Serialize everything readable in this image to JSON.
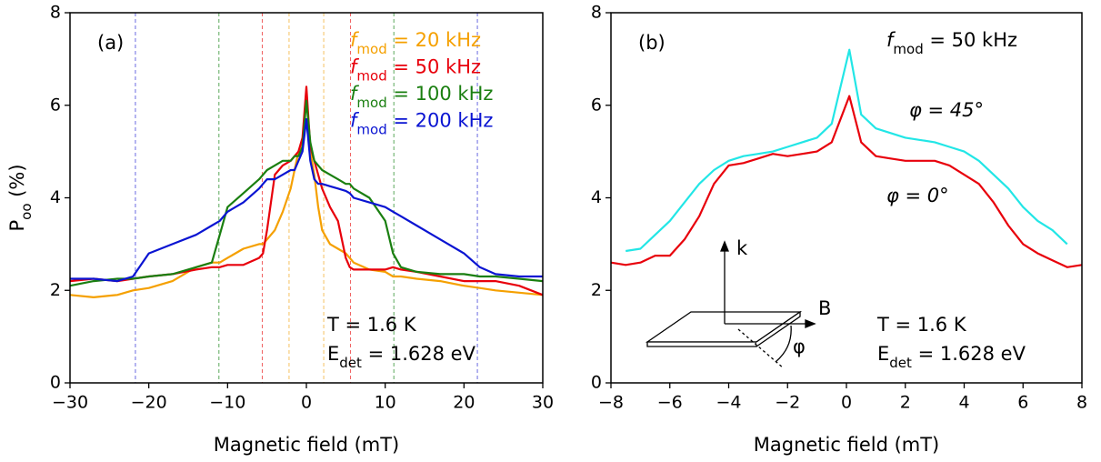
{
  "chart_data": [
    {
      "type": "line",
      "panel_label": "(a)",
      "x_label": "Magnetic field (mT)",
      "y_label": [
        "P",
        "oo",
        " (%)"
      ],
      "xlim": [
        -30,
        30
      ],
      "ylim": [
        0,
        8
      ],
      "xticks": [
        {
          "value": -30,
          "label": "−30"
        },
        {
          "value": -20,
          "label": "−20"
        },
        {
          "value": -10,
          "label": "−10"
        },
        0,
        10,
        20,
        30
      ],
      "yticks": [
        0,
        2,
        4,
        6,
        8
      ],
      "x": [
        -30,
        -27,
        -24,
        -22,
        -20,
        -17,
        -14,
        -12,
        -11,
        -10,
        -8,
        -6,
        -5.5,
        -5,
        -4,
        -3,
        -2,
        -1.5,
        -1,
        -0.5,
        0,
        0.5,
        1,
        1.5,
        2,
        3,
        4,
        5,
        5.5,
        6,
        8,
        10,
        11,
        12,
        14,
        17,
        20,
        22,
        24,
        27,
        30
      ],
      "series": [
        {
          "name": [
            "f",
            "mod",
            " = 20 kHz"
          ],
          "color": "#f5a000",
          "values": [
            1.9,
            1.85,
            1.9,
            2.0,
            2.05,
            2.2,
            2.5,
            2.6,
            2.6,
            2.7,
            2.9,
            3.0,
            3.0,
            3.1,
            3.3,
            3.7,
            4.2,
            4.6,
            5.0,
            5.2,
            6.3,
            5.0,
            4.5,
            3.8,
            3.3,
            3.0,
            2.9,
            2.8,
            2.7,
            2.6,
            2.45,
            2.4,
            2.3,
            2.3,
            2.25,
            2.2,
            2.1,
            2.05,
            2.0,
            1.95,
            1.9
          ]
        },
        {
          "name": [
            "f",
            "mod",
            " = 50 kHz"
          ],
          "color": "#e8000b",
          "values": [
            2.2,
            2.25,
            2.2,
            2.25,
            2.3,
            2.35,
            2.45,
            2.5,
            2.5,
            2.55,
            2.55,
            2.7,
            2.8,
            3.3,
            4.5,
            4.7,
            4.8,
            4.9,
            5.0,
            5.3,
            6.4,
            5.1,
            4.8,
            4.5,
            4.2,
            3.8,
            3.5,
            2.7,
            2.5,
            2.45,
            2.45,
            2.45,
            2.5,
            2.45,
            2.4,
            2.3,
            2.2,
            2.2,
            2.2,
            2.1,
            1.9
          ]
        },
        {
          "name": [
            "f",
            "mod",
            " = 100 kHz"
          ],
          "color": "#1a7f10",
          "values": [
            2.1,
            2.2,
            2.25,
            2.25,
            2.3,
            2.35,
            2.5,
            2.6,
            3.2,
            3.8,
            4.1,
            4.4,
            4.5,
            4.6,
            4.7,
            4.8,
            4.8,
            4.9,
            4.9,
            5.1,
            6.1,
            5.2,
            4.8,
            4.7,
            4.6,
            4.5,
            4.4,
            4.3,
            4.3,
            4.2,
            4.0,
            3.5,
            2.8,
            2.5,
            2.4,
            2.35,
            2.35,
            2.3,
            2.3,
            2.25,
            2.2
          ]
        },
        {
          "name": [
            "f",
            "mod",
            " = 200 kHz"
          ],
          "color": "#0a14d2",
          "values": [
            2.25,
            2.25,
            2.2,
            2.3,
            2.8,
            3.0,
            3.2,
            3.4,
            3.5,
            3.7,
            3.9,
            4.2,
            4.3,
            4.4,
            4.4,
            4.5,
            4.6,
            4.6,
            4.8,
            5.0,
            5.7,
            4.8,
            4.4,
            4.3,
            4.3,
            4.25,
            4.2,
            4.15,
            4.1,
            4.0,
            3.9,
            3.8,
            3.7,
            3.6,
            3.4,
            3.1,
            2.8,
            2.5,
            2.35,
            2.3,
            2.3
          ]
        }
      ],
      "vlines": [
        {
          "x": -21.7,
          "color": "#6a6ae0"
        },
        {
          "x": -11.1,
          "color": "#5aa85a"
        },
        {
          "x": -5.6,
          "color": "#f06060"
        },
        {
          "x": -2.2,
          "color": "#f5c060"
        },
        {
          "x": 2.2,
          "color": "#f5c060"
        },
        {
          "x": 5.6,
          "color": "#f06060"
        },
        {
          "x": 11.1,
          "color": "#5aa85a"
        },
        {
          "x": 21.7,
          "color": "#6a6ae0"
        }
      ],
      "annotations": [
        [
          "T = 1.6 K"
        ],
        [
          "E",
          "det",
          " = 1.628 eV"
        ]
      ]
    },
    {
      "type": "line",
      "panel_label": "(b)",
      "x_label": "Magnetic field (mT)",
      "xlim": [
        -8,
        8
      ],
      "ylim": [
        0,
        8
      ],
      "xticks": [
        {
          "value": -8,
          "label": "−8"
        },
        {
          "value": -6,
          "label": "−6"
        },
        {
          "value": -4,
          "label": "−4"
        },
        {
          "value": -2,
          "label": "−2"
        },
        0,
        2,
        4,
        6,
        8
      ],
      "yticks": [
        0,
        2,
        4,
        6,
        8
      ],
      "x": [
        -8,
        -7.5,
        -7,
        -6.5,
        -6,
        -5.5,
        -5,
        -4.5,
        -4,
        -3.5,
        -3,
        -2.5,
        -2,
        -1.5,
        -1,
        -0.5,
        0.1,
        0.5,
        1,
        1.5,
        2,
        2.5,
        3,
        3.5,
        4,
        4.5,
        5,
        5.5,
        6,
        6.5,
        7,
        7.5,
        8
      ],
      "series": [
        {
          "name": "φ = 45°",
          "color": "#22e6e6",
          "values": [
            null,
            2.85,
            2.9,
            3.2,
            3.5,
            3.9,
            4.3,
            4.6,
            4.8,
            4.9,
            4.95,
            5.0,
            5.1,
            5.2,
            5.3,
            5.6,
            7.2,
            5.8,
            5.5,
            5.4,
            5.3,
            5.25,
            5.2,
            5.1,
            5.0,
            4.8,
            4.5,
            4.2,
            3.8,
            3.5,
            3.3,
            3.0,
            null
          ]
        },
        {
          "name": "φ = 0°",
          "color": "#e8000b",
          "values": [
            2.6,
            2.55,
            2.6,
            2.75,
            2.75,
            3.1,
            3.6,
            4.3,
            4.7,
            4.75,
            4.85,
            4.95,
            4.9,
            4.95,
            5.0,
            5.2,
            6.2,
            5.2,
            4.9,
            4.85,
            4.8,
            4.8,
            4.8,
            4.7,
            4.5,
            4.3,
            3.9,
            3.4,
            3.0,
            2.8,
            2.65,
            2.5,
            2.55
          ]
        }
      ],
      "annotations": [
        [
          "f",
          "mod",
          " = 50 kHz"
        ],
        [
          "T = 1.6 K"
        ],
        [
          "E",
          "det",
          " = 1.628 eV"
        ]
      ],
      "inset_labels": [
        "k",
        "B",
        "φ"
      ]
    }
  ]
}
